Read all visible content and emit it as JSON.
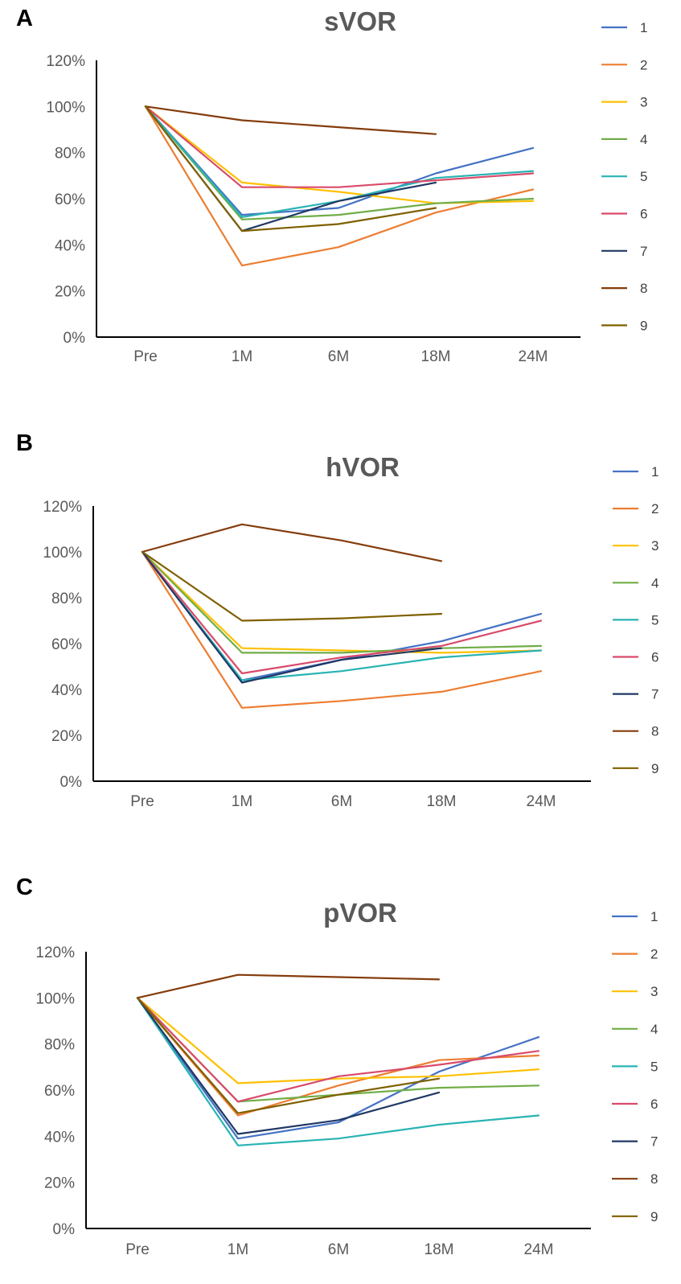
{
  "colors": {
    "1": "#4472C4",
    "2": "#ED7D31",
    "3": "#FFC000",
    "4": "#70AD47",
    "5": "#29B3B3",
    "6": "#D94B6A",
    "7": "#203864",
    "8": "#843C0C",
    "9": "#7F6000"
  },
  "chart_data": [
    {
      "type": "line",
      "panel": "A",
      "title": "sVOR",
      "categories": [
        "Pre",
        "1M",
        "6M",
        "18M",
        "24M"
      ],
      "ylim": [
        0,
        120
      ],
      "yticks": [
        "0%",
        "20%",
        "40%",
        "60%",
        "80%",
        "100%",
        "120%"
      ],
      "xlabel": "",
      "ylabel": "",
      "grid": false,
      "legend_position": "right",
      "series": [
        {
          "name": "1",
          "values": [
            100,
            53,
            56,
            71,
            82
          ]
        },
        {
          "name": "2",
          "values": [
            100,
            31,
            39,
            54,
            64
          ]
        },
        {
          "name": "3",
          "values": [
            100,
            67,
            63,
            58,
            59
          ]
        },
        {
          "name": "4",
          "values": [
            100,
            51,
            53,
            58,
            60
          ]
        },
        {
          "name": "5",
          "values": [
            100,
            52,
            59,
            69,
            72
          ]
        },
        {
          "name": "6",
          "values": [
            100,
            65,
            65,
            68,
            71
          ]
        },
        {
          "name": "7",
          "values": [
            100,
            46,
            59,
            67,
            null
          ]
        },
        {
          "name": "8",
          "values": [
            100,
            94,
            91,
            88,
            null
          ]
        },
        {
          "name": "9",
          "values": [
            100,
            46,
            49,
            56,
            null
          ]
        }
      ]
    },
    {
      "type": "line",
      "panel": "B",
      "title": "hVOR",
      "categories": [
        "Pre",
        "1M",
        "6M",
        "18M",
        "24M"
      ],
      "ylim": [
        0,
        120
      ],
      "yticks": [
        "0%",
        "20%",
        "40%",
        "60%",
        "80%",
        "100%",
        "120%"
      ],
      "xlabel": "",
      "ylabel": "",
      "grid": false,
      "legend_position": "right",
      "series": [
        {
          "name": "1",
          "values": [
            100,
            44,
            53,
            61,
            73
          ]
        },
        {
          "name": "2",
          "values": [
            100,
            32,
            35,
            39,
            48
          ]
        },
        {
          "name": "3",
          "values": [
            100,
            58,
            57,
            56,
            57
          ]
        },
        {
          "name": "4",
          "values": [
            100,
            56,
            56,
            58,
            59
          ]
        },
        {
          "name": "5",
          "values": [
            100,
            44,
            48,
            54,
            57
          ]
        },
        {
          "name": "6",
          "values": [
            100,
            47,
            54,
            59,
            70
          ]
        },
        {
          "name": "7",
          "values": [
            100,
            43,
            53,
            58,
            null
          ]
        },
        {
          "name": "8",
          "values": [
            100,
            112,
            105,
            96,
            null
          ]
        },
        {
          "name": "9",
          "values": [
            100,
            70,
            71,
            73,
            null
          ]
        }
      ]
    },
    {
      "type": "line",
      "panel": "C",
      "title": "pVOR",
      "categories": [
        "Pre",
        "1M",
        "6M",
        "18M",
        "24M"
      ],
      "ylim": [
        0,
        120
      ],
      "yticks": [
        "0%",
        "20%",
        "40%",
        "60%",
        "80%",
        "100%",
        "120%"
      ],
      "xlabel": "",
      "ylabel": "",
      "grid": false,
      "legend_position": "right",
      "series": [
        {
          "name": "1",
          "values": [
            100,
            39,
            46,
            68,
            83
          ]
        },
        {
          "name": "2",
          "values": [
            100,
            49,
            62,
            73,
            75
          ]
        },
        {
          "name": "3",
          "values": [
            100,
            63,
            65,
            66,
            69
          ]
        },
        {
          "name": "4",
          "values": [
            100,
            55,
            58,
            61,
            62
          ]
        },
        {
          "name": "5",
          "values": [
            100,
            36,
            39,
            45,
            49
          ]
        },
        {
          "name": "6",
          "values": [
            100,
            55,
            66,
            71,
            77
          ]
        },
        {
          "name": "7",
          "values": [
            100,
            41,
            47,
            59,
            null
          ]
        },
        {
          "name": "8",
          "values": [
            100,
            110,
            109,
            108,
            null
          ]
        },
        {
          "name": "9",
          "values": [
            100,
            50,
            58,
            65,
            null
          ]
        }
      ]
    }
  ]
}
